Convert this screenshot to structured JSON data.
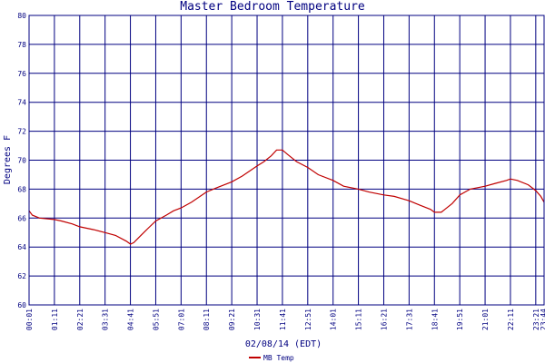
{
  "chart_data": {
    "type": "line",
    "title": "Master Bedroom Temperature",
    "xlabel": "02/08/14 (EDT)",
    "ylabel": "Degrees F",
    "ylim": [
      60,
      80
    ],
    "yticks": [
      60,
      62,
      64,
      66,
      68,
      70,
      72,
      74,
      76,
      78,
      80
    ],
    "xlim": [
      "00:01",
      "23:44"
    ],
    "xticks": [
      "00:01",
      "01:11",
      "02:21",
      "03:31",
      "04:41",
      "05:51",
      "07:01",
      "08:11",
      "09:21",
      "10:31",
      "11:41",
      "12:51",
      "14:01",
      "15:11",
      "16:21",
      "17:31",
      "18:41",
      "19:51",
      "21:01",
      "22:11",
      "23:21",
      "23:44"
    ],
    "grid": true,
    "legend": "bottom-left",
    "colors": {
      "line": "#c00000",
      "grid": "#000080",
      "background": "#ffffff"
    },
    "series": [
      {
        "name": "MB Temp",
        "x": [
          "00:01",
          "00:10",
          "00:30",
          "01:11",
          "01:30",
          "02:00",
          "02:21",
          "03:00",
          "03:31",
          "04:00",
          "04:30",
          "04:41",
          "04:50",
          "05:10",
          "05:30",
          "05:51",
          "06:20",
          "06:40",
          "07:01",
          "07:30",
          "08:11",
          "08:40",
          "09:21",
          "09:50",
          "10:31",
          "10:50",
          "11:10",
          "11:25",
          "11:41",
          "11:55",
          "12:20",
          "12:51",
          "13:20",
          "14:01",
          "14:30",
          "15:11",
          "15:40",
          "16:21",
          "16:50",
          "17:31",
          "18:00",
          "18:30",
          "18:41",
          "19:00",
          "19:10",
          "19:30",
          "19:51",
          "20:20",
          "21:01",
          "21:30",
          "22:00",
          "22:11",
          "22:30",
          "23:00",
          "23:21",
          "23:35",
          "23:44"
        ],
        "y": [
          66.5,
          66.2,
          66.0,
          65.9,
          65.8,
          65.6,
          65.4,
          65.2,
          65.0,
          64.8,
          64.4,
          64.2,
          64.3,
          64.8,
          65.3,
          65.8,
          66.2,
          66.5,
          66.7,
          67.1,
          67.8,
          68.1,
          68.5,
          68.9,
          69.6,
          69.9,
          70.3,
          70.7,
          70.7,
          70.4,
          69.9,
          69.5,
          69.0,
          68.6,
          68.2,
          68.0,
          67.8,
          67.6,
          67.5,
          67.2,
          66.9,
          66.6,
          66.4,
          66.4,
          66.6,
          67.0,
          67.6,
          68.0,
          68.2,
          68.4,
          68.6,
          68.7,
          68.6,
          68.3,
          67.9,
          67.5,
          67.1
        ]
      }
    ]
  }
}
